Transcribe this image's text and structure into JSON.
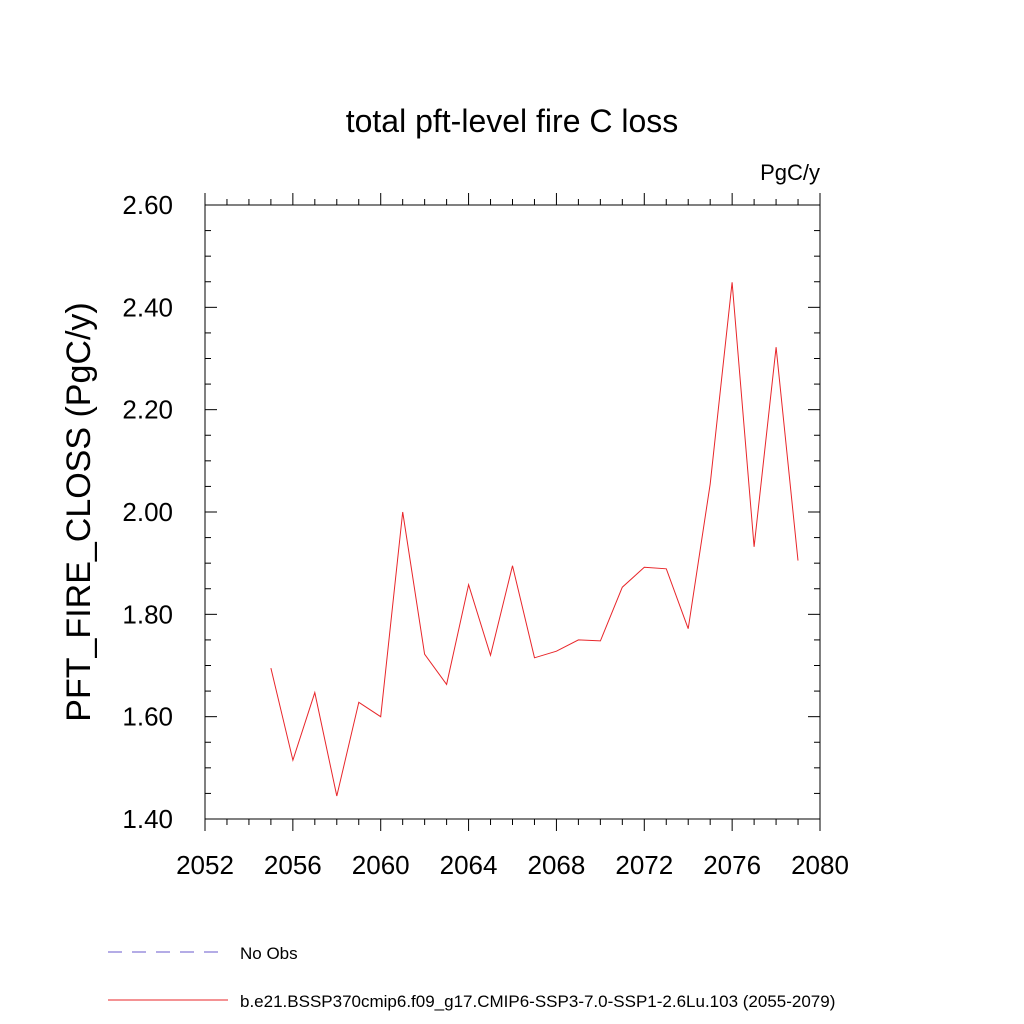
{
  "chart_data": {
    "type": "line",
    "title": "total pft-level fire C loss",
    "units": "PgC/y",
    "ylabel": "PFT_FIRE_CLOSS  (PgC/y)",
    "xlabel": "",
    "xlim": [
      2052,
      2080
    ],
    "ylim": [
      1.4,
      2.6
    ],
    "xticks": [
      2052,
      2056,
      2060,
      2064,
      2068,
      2072,
      2076,
      2080
    ],
    "xtick_labels": [
      "2052",
      "2056",
      "2060",
      "2064",
      "2068",
      "2072",
      "2076",
      "2080"
    ],
    "yticks": [
      1.4,
      1.6,
      1.8,
      2.0,
      2.2,
      2.4,
      2.6
    ],
    "ytick_labels": [
      "1.40",
      "1.60",
      "1.80",
      "2.00",
      "2.20",
      "2.40",
      "2.60"
    ],
    "grid": false,
    "legend_position": "bottom",
    "series": [
      {
        "name": "b.e21.BSSP370cmip6.f09_g17.CMIP6-SSP3-7.0-SSP1-2.6Lu.103 (2055-2079)",
        "color": "#e8262a",
        "style": "solid",
        "x": [
          2055,
          2056,
          2057,
          2058,
          2059,
          2060,
          2061,
          2062,
          2063,
          2064,
          2065,
          2066,
          2067,
          2068,
          2069,
          2070,
          2071,
          2072,
          2073,
          2074,
          2075,
          2076,
          2077,
          2078,
          2079
        ],
        "values": [
          1.695,
          1.515,
          1.647,
          1.445,
          1.628,
          1.6,
          2.0,
          1.722,
          1.663,
          1.858,
          1.72,
          1.895,
          1.715,
          1.728,
          1.75,
          1.748,
          1.853,
          1.892,
          1.889,
          1.772,
          2.055,
          2.449,
          1.932,
          2.322,
          1.905
        ]
      },
      {
        "name": "No Obs",
        "color": "#6a5acd",
        "style": "dashed",
        "x": [],
        "values": []
      }
    ]
  }
}
